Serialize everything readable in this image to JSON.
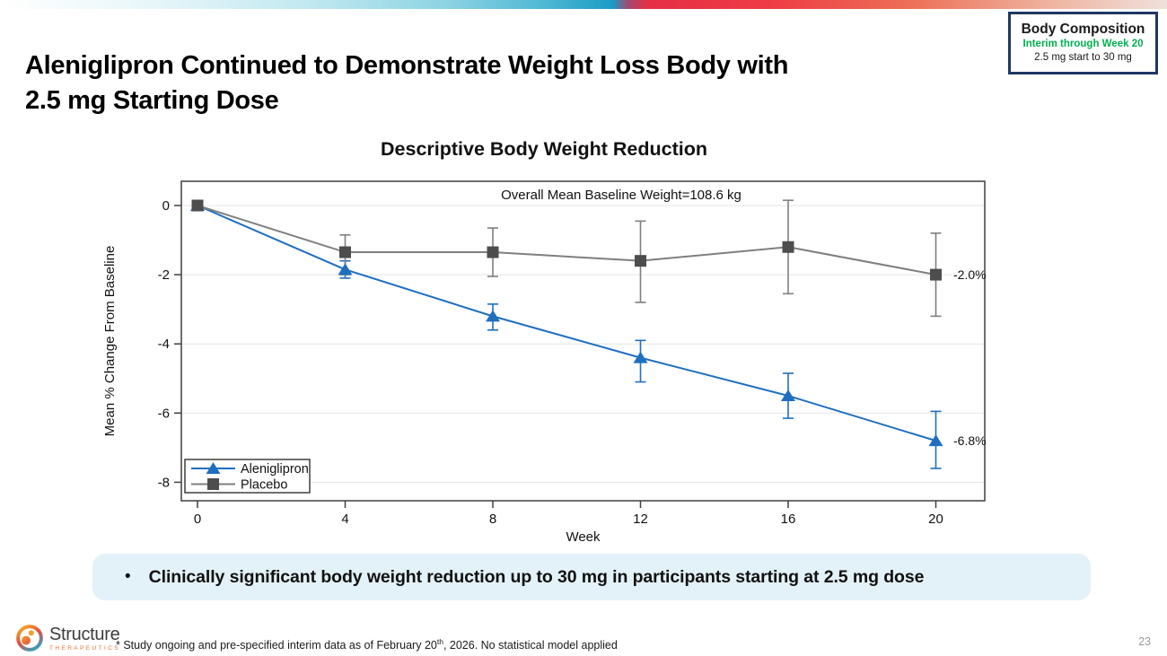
{
  "slide": {
    "title_line1": "Aleniglipron Continued to Demonstrate Weight Loss Body with",
    "title_line2": "2.5 mg Starting Dose",
    "bullet_marker": "•",
    "bullet_text": "Clinically significant body weight reduction up to 30 mg in participants starting at 2.5 mg dose",
    "footnote": {
      "prefix": "* Study ongoing and pre-specified interim data as of February 20",
      "sup": "th",
      "suffix": ", 2026. No statistical model applied"
    },
    "page_number": "23"
  },
  "badge": {
    "title": "Body Composition",
    "subtitle": "Interim through Week 20",
    "detail": "2.5 mg start to 30 mg"
  },
  "logo": {
    "name": "Structure",
    "sub": "THERAPEUTICS"
  },
  "colors": {
    "accent_green": "#00b050",
    "badge_border_navy": "#1f3864",
    "series_blue": "#1f6fbf",
    "series_gray_line": "#7f7f7f",
    "series_gray_marker": "#4d4d4d",
    "bullet_box_bg": "#e3f1f8",
    "logo_orange": "#e8752c"
  },
  "chart_data": {
    "type": "line",
    "title": "Descriptive Body Weight Reduction",
    "annotation": "Overall Mean Baseline Weight=108.6 kg",
    "xlabel": "Week",
    "ylabel": "Mean % Change From Baseline",
    "x": [
      0,
      4,
      8,
      12,
      16,
      20
    ],
    "xlim": [
      -0.45,
      21.3
    ],
    "ylim": [
      -8.5,
      0.7
    ],
    "yticks": [
      0,
      -2,
      -4,
      -6,
      -8
    ],
    "grid": true,
    "legend_position": "bottom-left",
    "series": [
      {
        "name": "Aleniglipron",
        "color": "#1f6fbf",
        "marker": "triangle",
        "marker_color": "#1f6fbf",
        "values": [
          0,
          -1.85,
          -3.2,
          -4.4,
          -5.5,
          -6.8
        ],
        "err_lo": [
          null,
          -2.1,
          -3.6,
          -5.1,
          -6.15,
          -7.6
        ],
        "err_hi": [
          null,
          -1.6,
          -2.85,
          -3.9,
          -4.85,
          -5.95
        ],
        "end_label": "-6.8%"
      },
      {
        "name": "Placebo",
        "color": "#7f7f7f",
        "marker": "square",
        "marker_color": "#4d4d4d",
        "values": [
          0,
          -1.35,
          -1.35,
          -1.6,
          -1.2,
          -2.0
        ],
        "err_lo": [
          null,
          -2.0,
          -2.05,
          -2.8,
          -2.55,
          -3.2
        ],
        "err_hi": [
          null,
          -0.85,
          -0.65,
          -0.45,
          0.15,
          -0.8
        ],
        "end_label": "-2.0%"
      }
    ]
  }
}
